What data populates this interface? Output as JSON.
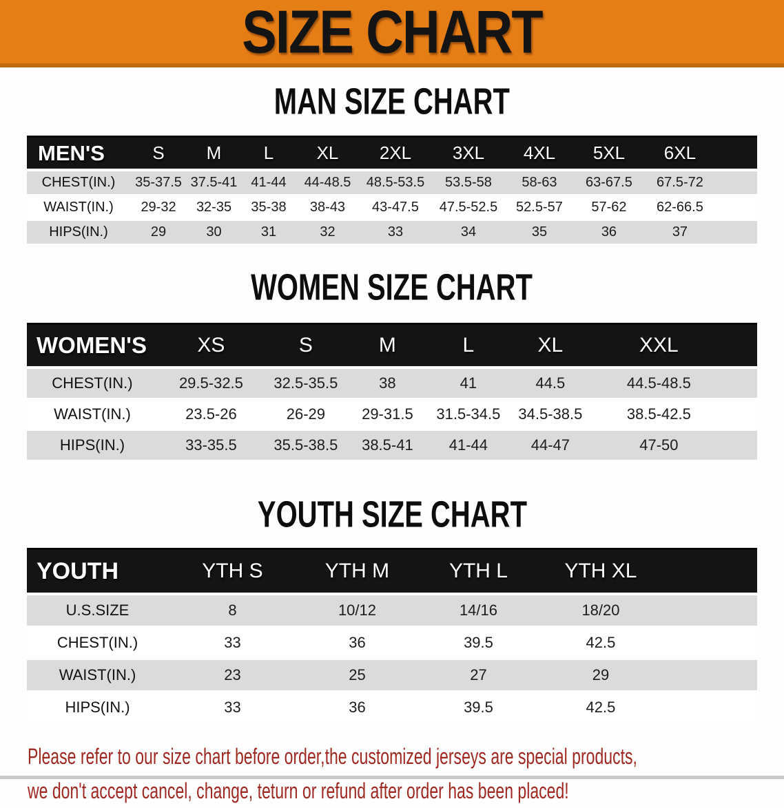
{
  "banner": {
    "title": "SIZE CHART",
    "bg_color": "#E67E16",
    "edge_color": "#C2690F",
    "text_color": "#141414"
  },
  "colors": {
    "header_bar_bg": "#141414",
    "header_bar_text": "#FFFFFF",
    "row_shade": "#DBDBDB",
    "row_plain": "#FFFFFF",
    "disclaimer_text": "#9E2820"
  },
  "sections": [
    {
      "id": "men",
      "heading": "MAN SIZE CHART",
      "table": {
        "corner_label": "MEN'S",
        "sizes": [
          "S",
          "M",
          "L",
          "XL",
          "2XL",
          "3XL",
          "4XL",
          "5XL",
          "6XL"
        ],
        "rows": [
          {
            "label": "CHEST(IN.)",
            "values": [
              "35-37.5",
              "37.5-41",
              "41-44",
              "44-48.5",
              "48.5-53.5",
              "53.5-58",
              "58-63",
              "63-67.5",
              "67.5-72"
            ]
          },
          {
            "label": "WAIST(IN.)",
            "values": [
              "29-32",
              "32-35",
              "35-38",
              "38-43",
              "43-47.5",
              "47.5-52.5",
              "52.5-57",
              "57-62",
              "62-66.5"
            ]
          },
          {
            "label": "HIPS(IN.)",
            "values": [
              "29",
              "30",
              "31",
              "32",
              "33",
              "34",
              "35",
              "36",
              "37"
            ]
          }
        ]
      }
    },
    {
      "id": "women",
      "heading": "WOMEN SIZE CHART",
      "table": {
        "corner_label": "WOMEN'S",
        "sizes": [
          "XS",
          "S",
          "M",
          "L",
          "XL",
          "XXL"
        ],
        "rows": [
          {
            "label": "CHEST(IN.)",
            "values": [
              "29.5-32.5",
              "32.5-35.5",
              "38",
              "41",
              "44.5",
              "44.5-48.5"
            ]
          },
          {
            "label": "WAIST(IN.)",
            "values": [
              "23.5-26",
              "26-29",
              "29-31.5",
              "31.5-34.5",
              "34.5-38.5",
              "38.5-42.5"
            ]
          },
          {
            "label": "HIPS(IN.)",
            "values": [
              "33-35.5",
              "35.5-38.5",
              "38.5-41",
              "41-44",
              "44-47",
              "47-50"
            ]
          }
        ]
      }
    },
    {
      "id": "youth",
      "heading": "YOUTH SIZE CHART",
      "table": {
        "corner_label": "YOUTH",
        "sizes": [
          "YTH S",
          "YTH M",
          "YTH L",
          "YTH XL"
        ],
        "rows": [
          {
            "label": "U.S.SIZE",
            "values": [
              "8",
              "10/12",
              "14/16",
              "18/20"
            ]
          },
          {
            "label": "CHEST(IN.)",
            "values": [
              "33",
              "36",
              "39.5",
              "42.5"
            ]
          },
          {
            "label": "WAIST(IN.)",
            "values": [
              "23",
              "25",
              "27",
              "29"
            ]
          },
          {
            "label": "HIPS(IN.)",
            "values": [
              "33",
              "36",
              "39.5",
              "42.5"
            ]
          }
        ]
      }
    }
  ],
  "disclaimer": {
    "line1": "Please refer to our size chart before order,the customized jerseys are special products,",
    "line2": "we don't accept cancel, change, teturn or refund after order has been placed!"
  }
}
